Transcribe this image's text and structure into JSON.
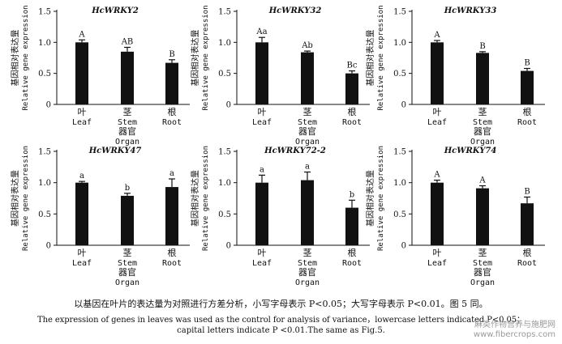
{
  "chart_data": [
    {
      "type": "bar",
      "title": "HcWRKY2",
      "ylabel_cn": "基因相对表达量",
      "ylabel_en": "Relative gene expression",
      "xlabel_cn": "器官",
      "xlabel_en": "Organ",
      "categories_cn": [
        "叶",
        "茎",
        "根"
      ],
      "categories_en": [
        "Leaf",
        "Stem",
        "Root"
      ],
      "values": [
        1.0,
        0.85,
        0.67
      ],
      "errors": [
        0.04,
        0.07,
        0.05
      ],
      "letters": [
        "A",
        "AB",
        "B"
      ],
      "ylim": [
        0,
        1.5
      ],
      "yticks": [
        "0",
        "0.5",
        "1.0",
        "1.5"
      ]
    },
    {
      "type": "bar",
      "title": "HcWRKY32",
      "ylabel_cn": "基因相对表达量",
      "ylabel_en": "Relative gene expression",
      "xlabel_cn": "器官",
      "xlabel_en": "Organ",
      "categories_cn": [
        "叶",
        "茎",
        "根"
      ],
      "categories_en": [
        "Leaf",
        "Stem",
        "Root"
      ],
      "values": [
        1.0,
        0.84,
        0.5
      ],
      "errors": [
        0.08,
        0.02,
        0.04
      ],
      "letters": [
        "Aa",
        "Ab",
        "Bc"
      ],
      "ylim": [
        0,
        1.5
      ],
      "yticks": [
        "0",
        "0.5",
        "1.0",
        "1.5"
      ]
    },
    {
      "type": "bar",
      "title": "HcWRKY33",
      "ylabel_cn": "基因相对表达量",
      "ylabel_en": "Relative gene expression",
      "xlabel_cn": "器官",
      "xlabel_en": "Organ",
      "categories_cn": [
        "叶",
        "茎",
        "根"
      ],
      "categories_en": [
        "Leaf",
        "Stem",
        "Root"
      ],
      "values": [
        1.0,
        0.83,
        0.54
      ],
      "errors": [
        0.03,
        0.02,
        0.04
      ],
      "letters": [
        "A",
        "B",
        "B"
      ],
      "ylim": [
        0,
        1.5
      ],
      "yticks": [
        "0",
        "0.5",
        "1.0",
        "1.5"
      ]
    },
    {
      "type": "bar",
      "title": "HcWRKY47",
      "ylabel_cn": "基因相对表达量",
      "ylabel_en": "Relative gene expression",
      "xlabel_cn": "器官",
      "xlabel_en": "Organ",
      "categories_cn": [
        "叶",
        "茎",
        "根"
      ],
      "categories_en": [
        "Leaf",
        "Stem",
        "Root"
      ],
      "values": [
        1.0,
        0.79,
        0.93
      ],
      "errors": [
        0.02,
        0.04,
        0.13
      ],
      "letters": [
        "a",
        "b",
        "a"
      ],
      "ylim": [
        0,
        1.5
      ],
      "yticks": [
        "0",
        "0.5",
        "1.0",
        "1.5"
      ]
    },
    {
      "type": "bar",
      "title": "HcWRKY72-2",
      "ylabel_cn": "基因相对表达量",
      "ylabel_en": "Relative gene expression",
      "xlabel_cn": "器官",
      "xlabel_en": "Organ",
      "categories_cn": [
        "叶",
        "茎",
        "根"
      ],
      "categories_en": [
        "Leaf",
        "Stem",
        "Root"
      ],
      "values": [
        1.0,
        1.04,
        0.6
      ],
      "errors": [
        0.12,
        0.13,
        0.12
      ],
      "letters": [
        "a",
        "a",
        "b"
      ],
      "ylim": [
        0,
        1.5
      ],
      "yticks": [
        "0",
        "0.5",
        "1.0",
        "1.5"
      ]
    },
    {
      "type": "bar",
      "title": "HcWRKY74",
      "ylabel_cn": "基因相对表达量",
      "ylabel_en": "Relative gene expression",
      "xlabel_cn": "器官",
      "xlabel_en": "Organ",
      "categories_cn": [
        "叶",
        "茎",
        "根"
      ],
      "categories_en": [
        "Leaf",
        "Stem",
        "Root"
      ],
      "values": [
        1.0,
        0.91,
        0.67
      ],
      "errors": [
        0.04,
        0.04,
        0.1
      ],
      "letters": [
        "A",
        "A",
        "B"
      ],
      "ylim": [
        0,
        1.5
      ],
      "yticks": [
        "0",
        "0.5",
        "1.0",
        "1.5"
      ]
    }
  ],
  "caption": {
    "cn": "以基因在叶片的表达量为对照进行方差分析，小写字母表示 P<0.05；大写字母表示 P<0.01。图 5 同。",
    "en1": "The expression of genes in leaves was used as the control for analysis of variance，lowercase letters indicated P<0.05；",
    "en2": "capital letters indicate P <0.01.The same as Fig.5."
  },
  "watermark": {
    "line1": "麻类作物营养与施肥网",
    "line2": "www.fibercrops.com"
  },
  "colors": {
    "bar": "#111111",
    "axis": "#111111",
    "text": "#111111",
    "watermark": "#9a9a9a"
  }
}
